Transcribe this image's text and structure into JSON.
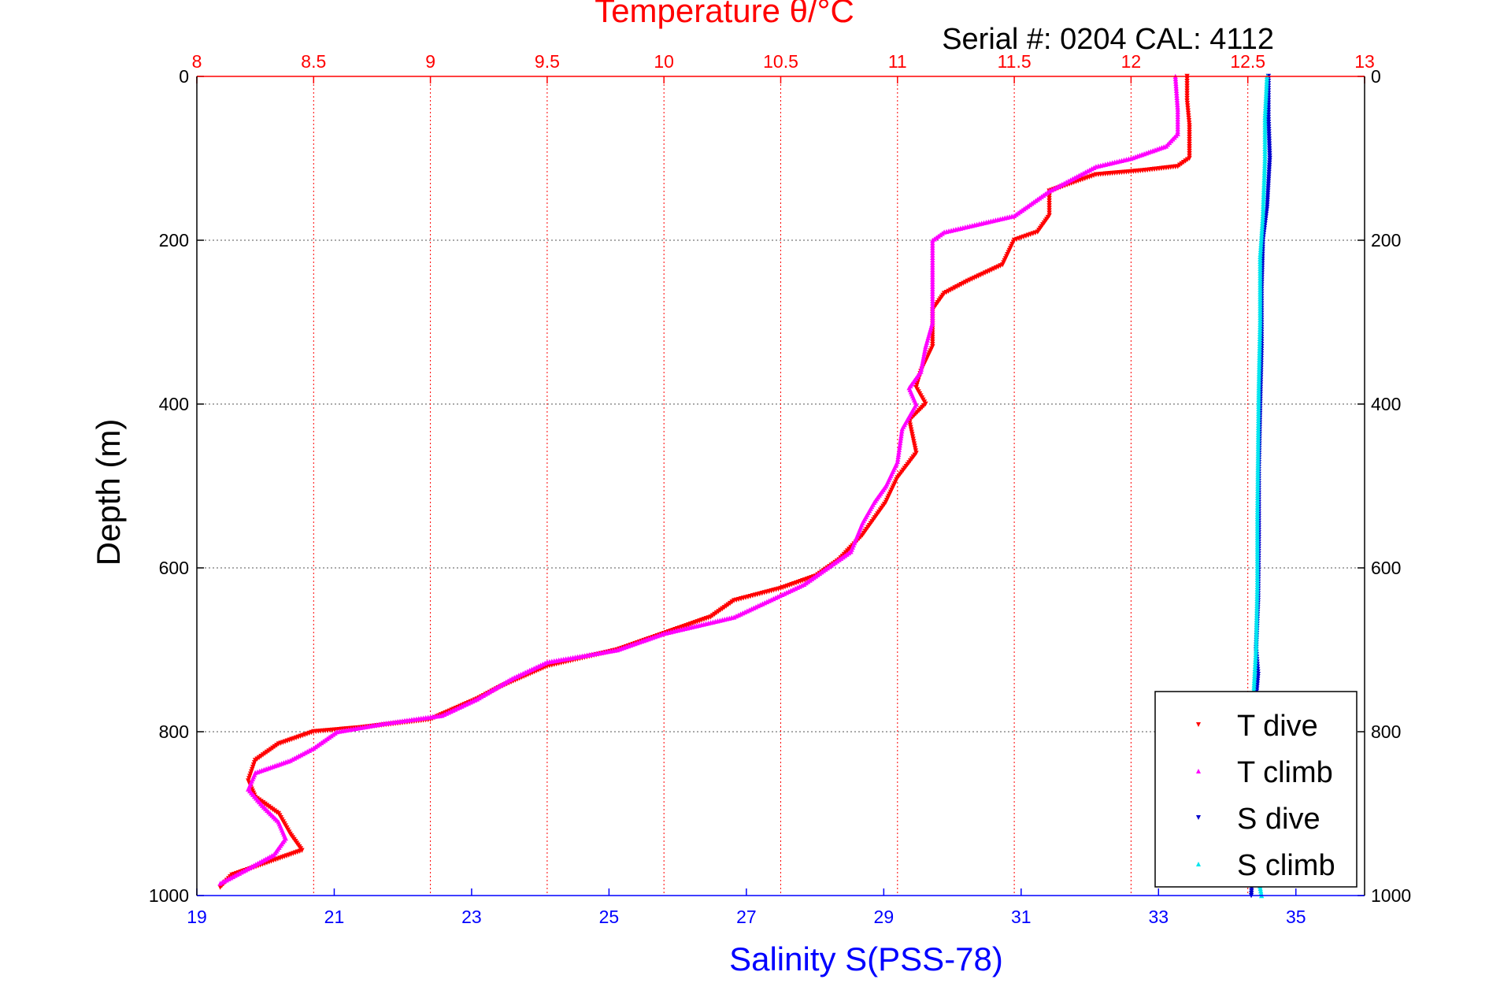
{
  "chart_data": {
    "type": "scatter",
    "title": "Temperature θ/°C",
    "subtitle": "Serial #: 0204  CAL: 4112",
    "ylabel": "Depth (m)",
    "xlabel_bottom": "Salinity S(PSS-78)",
    "xlabel_top": "Temperature θ/°C",
    "y_reversed": true,
    "ylim": [
      0,
      1000
    ],
    "yticks": [
      0,
      200,
      400,
      600,
      800,
      1000
    ],
    "top_xlim": [
      8,
      13
    ],
    "top_xticks": [
      "8",
      "8.5",
      "9",
      "9.5",
      "10",
      "10.5",
      "11",
      "11.5",
      "12",
      "12.5",
      "13"
    ],
    "bottom_xlim": [
      19,
      36
    ],
    "bottom_xticks": [
      "19",
      "21",
      "23",
      "25",
      "27",
      "29",
      "31",
      "33",
      "35"
    ],
    "grid": true,
    "legend_position": "bottom-right",
    "colors": {
      "temperature_axis": "#ff0000",
      "salinity_axis": "#0000ff",
      "t_dive": "#ff0000",
      "t_climb": "#ff00ff",
      "s_dive": "#0000cc",
      "s_climb": "#00e5ee"
    },
    "series": [
      {
        "name": "T dive",
        "axis": "top",
        "marker": "triangle-down",
        "color": "#ff0000",
        "points": [
          [
            12.24,
            0
          ],
          [
            12.24,
            30
          ],
          [
            12.25,
            60
          ],
          [
            12.25,
            100
          ],
          [
            12.2,
            110
          ],
          [
            12.05,
            115
          ],
          [
            11.85,
            120
          ],
          [
            11.65,
            140
          ],
          [
            11.65,
            170
          ],
          [
            11.6,
            190
          ],
          [
            11.5,
            200
          ],
          [
            11.45,
            230
          ],
          [
            11.3,
            250
          ],
          [
            11.2,
            265
          ],
          [
            11.15,
            285
          ],
          [
            11.15,
            330
          ],
          [
            11.1,
            360
          ],
          [
            11.08,
            380
          ],
          [
            11.12,
            400
          ],
          [
            11.05,
            420
          ],
          [
            11.08,
            460
          ],
          [
            11.0,
            490
          ],
          [
            10.95,
            520
          ],
          [
            10.85,
            560
          ],
          [
            10.75,
            590
          ],
          [
            10.65,
            610
          ],
          [
            10.5,
            625
          ],
          [
            10.3,
            640
          ],
          [
            10.2,
            660
          ],
          [
            10.0,
            680
          ],
          [
            9.8,
            700
          ],
          [
            9.5,
            720
          ],
          [
            9.3,
            745
          ],
          [
            9.2,
            760
          ],
          [
            9.0,
            785
          ],
          [
            8.7,
            795
          ],
          [
            8.5,
            800
          ],
          [
            8.35,
            815
          ],
          [
            8.25,
            835
          ],
          [
            8.22,
            860
          ],
          [
            8.25,
            880
          ],
          [
            8.35,
            900
          ],
          [
            8.4,
            925
          ],
          [
            8.45,
            945
          ],
          [
            8.3,
            960
          ],
          [
            8.15,
            975
          ],
          [
            8.1,
            990
          ]
        ]
      },
      {
        "name": "T climb",
        "axis": "top",
        "marker": "triangle-up",
        "color": "#ff00ff",
        "points": [
          [
            12.19,
            0
          ],
          [
            12.2,
            40
          ],
          [
            12.2,
            70
          ],
          [
            12.15,
            85
          ],
          [
            12.0,
            100
          ],
          [
            11.85,
            110
          ],
          [
            11.75,
            125
          ],
          [
            11.65,
            140
          ],
          [
            11.5,
            170
          ],
          [
            11.35,
            180
          ],
          [
            11.2,
            190
          ],
          [
            11.15,
            200
          ],
          [
            11.15,
            230
          ],
          [
            11.15,
            265
          ],
          [
            11.15,
            300
          ],
          [
            11.12,
            330
          ],
          [
            11.1,
            360
          ],
          [
            11.05,
            380
          ],
          [
            11.08,
            400
          ],
          [
            11.02,
            430
          ],
          [
            11.0,
            470
          ],
          [
            10.95,
            500
          ],
          [
            10.9,
            520
          ],
          [
            10.85,
            545
          ],
          [
            10.8,
            580
          ],
          [
            10.6,
            620
          ],
          [
            10.45,
            640
          ],
          [
            10.3,
            660
          ],
          [
            10.0,
            680
          ],
          [
            9.8,
            700
          ],
          [
            9.5,
            715
          ],
          [
            9.35,
            735
          ],
          [
            9.2,
            760
          ],
          [
            9.05,
            780
          ],
          [
            8.8,
            790
          ],
          [
            8.6,
            800
          ],
          [
            8.5,
            820
          ],
          [
            8.4,
            835
          ],
          [
            8.25,
            850
          ],
          [
            8.22,
            870
          ],
          [
            8.28,
            890
          ],
          [
            8.35,
            910
          ],
          [
            8.38,
            930
          ],
          [
            8.33,
            950
          ],
          [
            8.2,
            970
          ],
          [
            8.1,
            985
          ]
        ]
      },
      {
        "name": "S dive",
        "axis": "bottom",
        "marker": "triangle-down",
        "color": "#0000cc",
        "points": [
          [
            34.6,
            0
          ],
          [
            34.6,
            50
          ],
          [
            34.62,
            100
          ],
          [
            34.58,
            160
          ],
          [
            34.52,
            200
          ],
          [
            34.5,
            260
          ],
          [
            34.5,
            330
          ],
          [
            34.48,
            400
          ],
          [
            34.46,
            480
          ],
          [
            34.46,
            560
          ],
          [
            34.45,
            640
          ],
          [
            34.42,
            700
          ],
          [
            34.45,
            730
          ],
          [
            34.4,
            780
          ],
          [
            34.38,
            850
          ],
          [
            34.4,
            920
          ],
          [
            34.35,
            1000
          ]
        ]
      },
      {
        "name": "S climb",
        "axis": "bottom",
        "marker": "triangle-up",
        "color": "#00e5ee",
        "points": [
          [
            34.58,
            0
          ],
          [
            34.55,
            50
          ],
          [
            34.55,
            100
          ],
          [
            34.52,
            170
          ],
          [
            34.48,
            220
          ],
          [
            34.48,
            300
          ],
          [
            34.46,
            380
          ],
          [
            34.45,
            460
          ],
          [
            34.44,
            540
          ],
          [
            34.44,
            620
          ],
          [
            34.42,
            700
          ],
          [
            34.38,
            760
          ],
          [
            34.38,
            830
          ],
          [
            34.4,
            900
          ],
          [
            34.42,
            960
          ],
          [
            34.5,
            1000
          ]
        ]
      }
    ]
  }
}
